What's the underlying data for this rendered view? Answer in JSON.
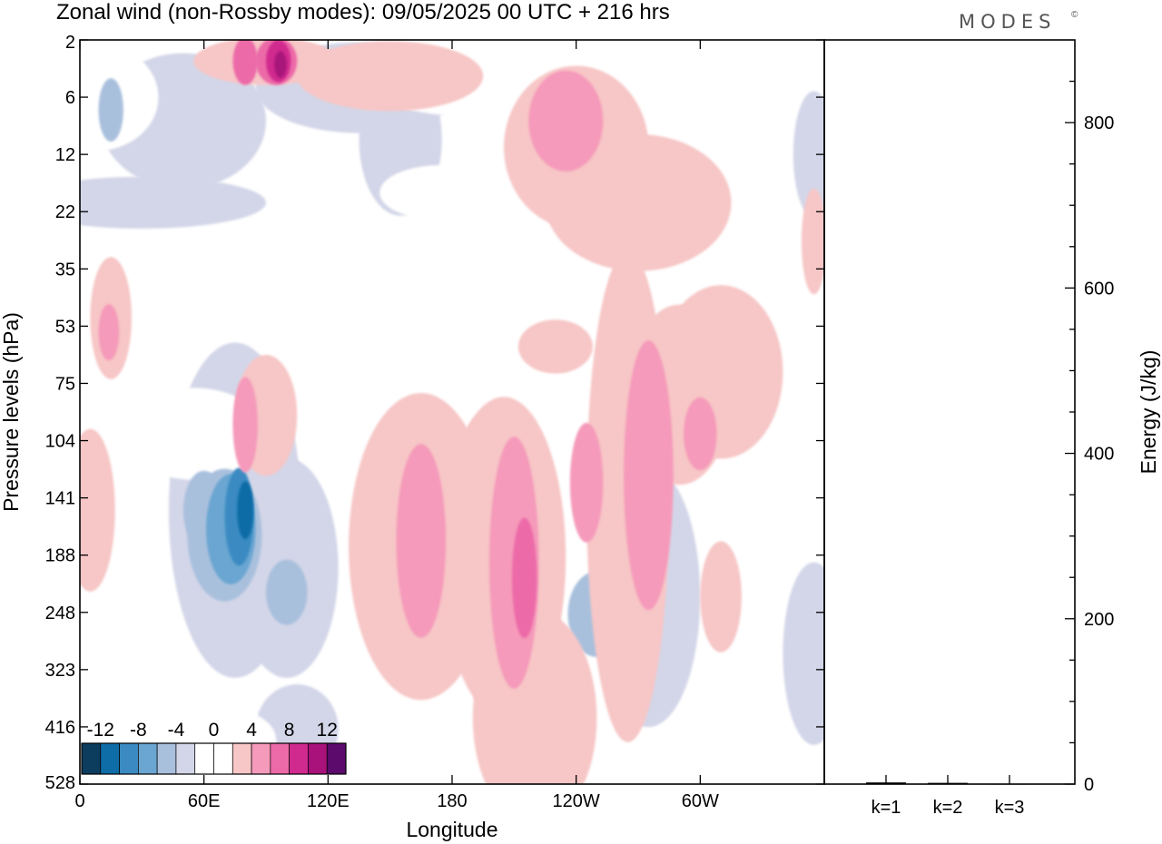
{
  "title": "Zonal wind (non-Rossby modes):  09/05/2025  00 UTC  + 216 hrs",
  "brand": "MODES",
  "brand_mark": "©",
  "chart_data": [
    {
      "type": "heatmap",
      "title": "Zonal wind (non-Rossby modes):  09/05/2025  00 UTC  + 216 hrs",
      "xlabel": "Longitude",
      "ylabel": "Pressure levels (hPa)",
      "x_ticks": [
        "0",
        "60E",
        "120E",
        "180",
        "120W",
        "60W"
      ],
      "x_tick_degrees": [
        0,
        60,
        120,
        180,
        240,
        300
      ],
      "x_range": [
        0,
        360
      ],
      "y_ticks": [
        "2",
        "6",
        "12",
        "22",
        "35",
        "53",
        "75",
        "104",
        "141",
        "188",
        "248",
        "323",
        "416",
        "528"
      ],
      "y_scale": "log-like (model levels)",
      "colorbar": {
        "tick_labels": [
          "-12",
          "-8",
          "-4",
          "0",
          "4",
          "8",
          "12"
        ],
        "colors": [
          "#0c3d5e",
          "#0e6ca6",
          "#3b8bc2",
          "#6aa6d1",
          "#a9c0dd",
          "#d3d6e8",
          "#ffffff",
          "#ffffff",
          "#f7c6c6",
          "#f59aba",
          "#ec6aa8",
          "#d12a8f",
          "#a8127a",
          "#5c0a6b"
        ]
      },
      "regions": [
        {
          "lon": 78,
          "level": 155,
          "value": -12
        },
        {
          "lon": 76,
          "level": 160,
          "value": -10
        },
        {
          "lon": 70,
          "level": 165,
          "value": -6
        },
        {
          "lon": 65,
          "level": 170,
          "value": -4
        },
        {
          "lon": 100,
          "level": 250,
          "value": -2
        },
        {
          "lon": 280,
          "level": 248,
          "value": -3
        },
        {
          "lon": 95,
          "level": 3,
          "value": 10
        },
        {
          "lon": 205,
          "level": 188,
          "value": 6
        },
        {
          "lon": 170,
          "level": 170,
          "value": 6
        },
        {
          "lon": 270,
          "level": 130,
          "value": 5
        },
        {
          "lon": 240,
          "level": 10,
          "value": 5
        },
        {
          "lon": 295,
          "level": 110,
          "value": 5
        }
      ]
    },
    {
      "type": "bar",
      "ylabel": "Energy (J/kg)",
      "categories": [
        "k=1",
        "k=2",
        "k=3"
      ],
      "values": [
        2,
        1.5,
        0.5
      ],
      "ylim": [
        0,
        900
      ],
      "y_ticks": [
        0,
        200,
        400,
        600,
        800
      ]
    }
  ]
}
